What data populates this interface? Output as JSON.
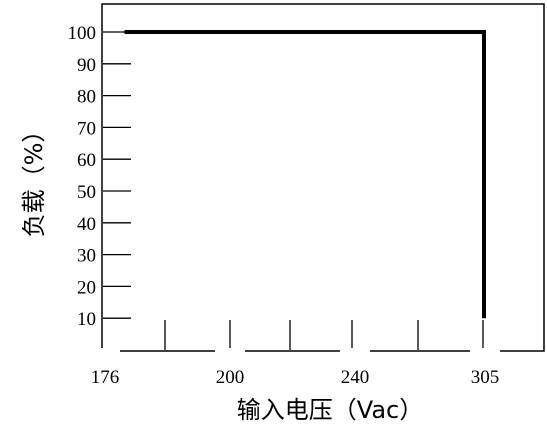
{
  "chart_data": {
    "type": "line",
    "title": "",
    "xlabel": "输入电压（Vac）",
    "ylabel": "负载（%）",
    "x_ticks": [
      "176",
      "200",
      "240",
      "305"
    ],
    "y_ticks": [
      10,
      20,
      30,
      40,
      50,
      60,
      70,
      80,
      90,
      100
    ],
    "xlim": [
      176,
      305
    ],
    "ylim": [
      0,
      100
    ],
    "grid": false,
    "legend": "none",
    "series": [
      {
        "x": [
          180,
          305,
          305
        ],
        "y": [
          100,
          100,
          10
        ],
        "color": "#000000"
      }
    ]
  }
}
